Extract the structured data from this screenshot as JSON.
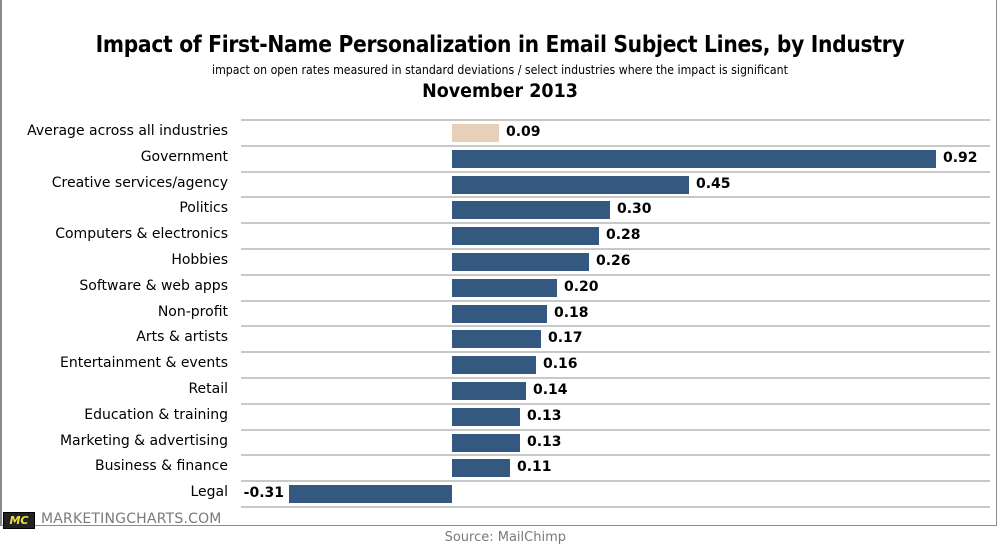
{
  "header": {
    "title": "Impact of First-Name Personalization in Email Subject Lines, by Industry",
    "subtitle": "impact on open rates measured in standard deviations / select industries where the impact is significant",
    "date": "November 2013"
  },
  "footer": {
    "logo_text": "MC",
    "brand": "MARKETINGCHARTS.COM",
    "source": "Source: MailChimp"
  },
  "colors": {
    "bar": "#34587f",
    "average_bar": "#e8d0b8",
    "gridline": "#c8c8c8"
  },
  "chart_data": {
    "type": "bar",
    "orientation": "horizontal",
    "title": "Impact of First-Name Personalization in Email Subject Lines, by Industry",
    "subtitle": "impact on open rates measured in standard deviations / select industries where the impact is significant",
    "date": "November 2013",
    "xlabel": "",
    "ylabel": "",
    "grid": true,
    "legend": null,
    "categories": [
      "Average across all industries",
      "Government",
      "Creative services/agency",
      "Politics",
      "Computers & electronics",
      "Hobbies",
      "Software & web apps",
      "Non-profit",
      "Arts & artists",
      "Entertainment & events",
      "Retail",
      "Education & training",
      "Marketing & advertising",
      "Business & finance",
      "Legal"
    ],
    "values": [
      0.09,
      0.92,
      0.45,
      0.3,
      0.28,
      0.26,
      0.2,
      0.18,
      0.17,
      0.16,
      0.14,
      0.13,
      0.13,
      0.11,
      -0.31
    ],
    "labels": [
      "0.09",
      "0.92",
      "0.45",
      "0.30",
      "0.28",
      "0.26",
      "0.20",
      "0.18",
      "0.17",
      "0.16",
      "0.14",
      "0.13",
      "0.13",
      "0.11",
      "-0.31"
    ],
    "highlight_index": 0,
    "source": "Source: MailChimp"
  }
}
